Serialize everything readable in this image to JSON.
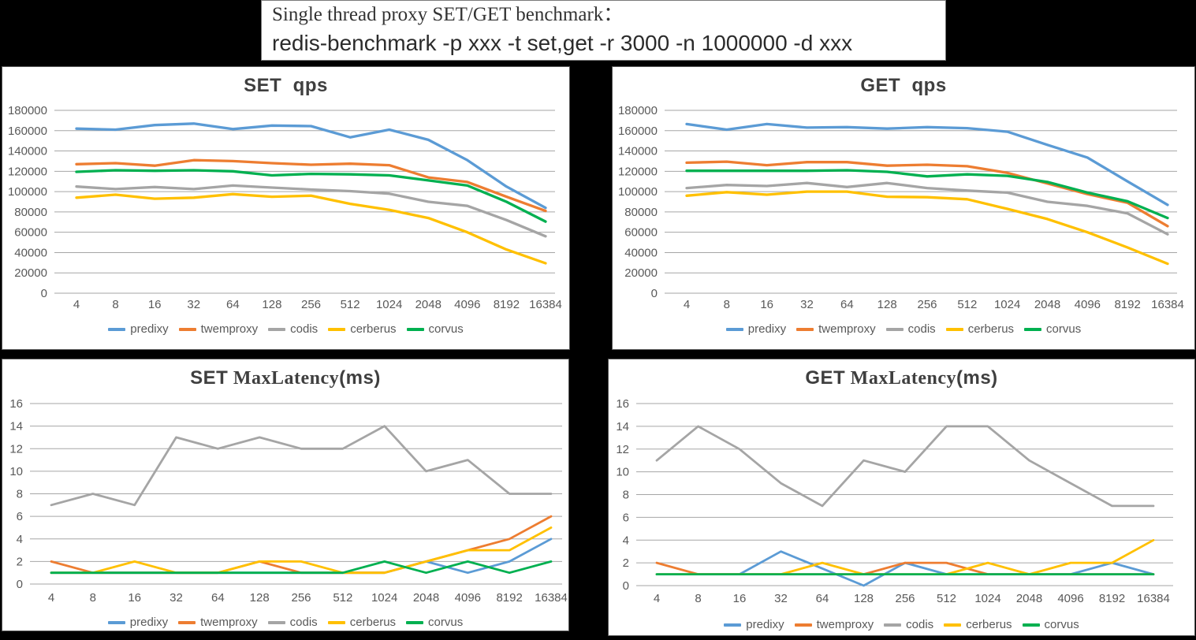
{
  "title_box": {
    "line1": "Single thread proxy SET/GET benchmark：",
    "line2": "redis-benchmark -p xxx -t set,get -r 3000 -n 1000000 -d xxx"
  },
  "colors": {
    "predixy": "#5B9BD5",
    "twemproxy": "#ED7D31",
    "codis": "#A5A5A5",
    "cerberus": "#FFC000",
    "corvus": "#00B050",
    "grid": "#A6A6A6",
    "axis_text": "#595959",
    "title_text": "#3F3F3F"
  },
  "legend": [
    "predixy",
    "twemproxy",
    "codis",
    "cerberus",
    "corvus"
  ],
  "categories": [
    "4",
    "8",
    "16",
    "32",
    "64",
    "128",
    "256",
    "512",
    "1024",
    "2048",
    "4096",
    "8192",
    "16384"
  ],
  "chart_data": [
    {
      "type": "line",
      "title": {
        "bold1": "SET",
        "serif": "",
        "bold2": "  qps"
      },
      "xlabel": "",
      "ylabel": "",
      "ylim": [
        0,
        180000
      ],
      "ytick_step": 20000,
      "grid": true,
      "legend_position": "bottom",
      "categories": [
        "4",
        "8",
        "16",
        "32",
        "64",
        "128",
        "256",
        "512",
        "1024",
        "2048",
        "4096",
        "8192",
        "16384"
      ],
      "series": [
        {
          "name": "predixy",
          "color": "#5B9BD5",
          "values": [
            162000,
            161000,
            165500,
            167000,
            161500,
            165000,
            164500,
            153500,
            161000,
            151000,
            131000,
            105000,
            84000
          ]
        },
        {
          "name": "twemproxy",
          "color": "#ED7D31",
          "values": [
            127000,
            128000,
            125500,
            131000,
            130000,
            128000,
            126500,
            127500,
            126000,
            114000,
            109500,
            95000,
            81000
          ]
        },
        {
          "name": "codis",
          "color": "#A5A5A5",
          "values": [
            105000,
            102500,
            104500,
            102500,
            106000,
            104000,
            102000,
            100500,
            98000,
            90000,
            86000,
            72000,
            56000
          ]
        },
        {
          "name": "cerberus",
          "color": "#FFC000",
          "values": [
            94000,
            97000,
            93000,
            94000,
            97500,
            95000,
            96000,
            88000,
            82000,
            74000,
            60000,
            43000,
            29500
          ]
        },
        {
          "name": "corvus",
          "color": "#00B050",
          "values": [
            119500,
            121000,
            120500,
            121000,
            120000,
            116000,
            117500,
            117000,
            116000,
            111000,
            106000,
            90000,
            70500
          ]
        }
      ]
    },
    {
      "type": "line",
      "title": {
        "bold1": "GET",
        "serif": "",
        "bold2": "  qps"
      },
      "xlabel": "",
      "ylabel": "",
      "ylim": [
        0,
        180000
      ],
      "ytick_step": 20000,
      "grid": true,
      "legend_position": "bottom",
      "categories": [
        "4",
        "8",
        "16",
        "32",
        "64",
        "128",
        "256",
        "512",
        "1024",
        "2048",
        "4096",
        "8192",
        "16384"
      ],
      "series": [
        {
          "name": "predixy",
          "color": "#5B9BD5",
          "values": [
            166500,
            161000,
            166500,
            163000,
            163500,
            162000,
            163500,
            162500,
            159000,
            146000,
            133500,
            110000,
            87000
          ]
        },
        {
          "name": "twemproxy",
          "color": "#ED7D31",
          "values": [
            128500,
            129500,
            126000,
            129000,
            129000,
            125500,
            126500,
            125000,
            118500,
            108000,
            97500,
            89000,
            66000
          ]
        },
        {
          "name": "codis",
          "color": "#A5A5A5",
          "values": [
            103500,
            106500,
            105500,
            108500,
            104500,
            108500,
            103500,
            101000,
            99000,
            90000,
            86000,
            78500,
            58000
          ]
        },
        {
          "name": "cerberus",
          "color": "#FFC000",
          "values": [
            96000,
            99500,
            97000,
            100000,
            100000,
            95000,
            94500,
            92500,
            83000,
            73000,
            60000,
            45000,
            29000
          ]
        },
        {
          "name": "corvus",
          "color": "#00B050",
          "values": [
            120500,
            120500,
            120500,
            120500,
            121000,
            119500,
            115000,
            117000,
            115500,
            109500,
            99000,
            90500,
            74000
          ]
        }
      ]
    },
    {
      "type": "line",
      "title": {
        "bold1": "SET",
        "serif": " MaxLatency",
        "bold2": "(ms)"
      },
      "xlabel": "",
      "ylabel": "",
      "ylim": [
        0,
        16
      ],
      "ytick_step": 2,
      "grid": true,
      "legend_position": "bottom",
      "categories": [
        "4",
        "8",
        "16",
        "32",
        "64",
        "128",
        "256",
        "512",
        "1024",
        "2048",
        "4096",
        "8192",
        "16384"
      ],
      "series": [
        {
          "name": "predixy",
          "color": "#5B9BD5",
          "values": [
            1,
            1,
            1,
            1,
            1,
            1,
            1,
            1,
            1,
            2,
            1,
            2,
            4
          ]
        },
        {
          "name": "twemproxy",
          "color": "#ED7D31",
          "values": [
            2,
            1,
            1,
            1,
            1,
            2,
            1,
            1,
            1,
            2,
            3,
            4,
            6
          ]
        },
        {
          "name": "codis",
          "color": "#A5A5A5",
          "values": [
            7,
            8,
            7,
            13,
            12,
            13,
            12,
            12,
            14,
            10,
            11,
            8,
            8
          ]
        },
        {
          "name": "cerberus",
          "color": "#FFC000",
          "values": [
            1,
            1,
            2,
            1,
            1,
            2,
            2,
            1,
            1,
            2,
            3,
            3,
            5
          ]
        },
        {
          "name": "corvus",
          "color": "#00B050",
          "values": [
            1,
            1,
            1,
            1,
            1,
            1,
            1,
            1,
            2,
            1,
            2,
            1,
            2
          ]
        }
      ]
    },
    {
      "type": "line",
      "title": {
        "bold1": "GET",
        "serif": " MaxLatency",
        "bold2": "(ms)"
      },
      "xlabel": "",
      "ylabel": "",
      "ylim": [
        0,
        16
      ],
      "ytick_step": 2,
      "grid": true,
      "legend_position": "bottom",
      "categories": [
        "4",
        "8",
        "16",
        "32",
        "64",
        "128",
        "256",
        "512",
        "1024",
        "2048",
        "4096",
        "8192",
        "16384"
      ],
      "series": [
        {
          "name": "predixy",
          "color": "#5B9BD5",
          "values": [
            1,
            1,
            1,
            3,
            1.5,
            0,
            2,
            1,
            1,
            1,
            1,
            2,
            1
          ]
        },
        {
          "name": "twemproxy",
          "color": "#ED7D31",
          "values": [
            2,
            1,
            1,
            1,
            1,
            1,
            2,
            2,
            1,
            1,
            1,
            1,
            1
          ]
        },
        {
          "name": "codis",
          "color": "#A5A5A5",
          "values": [
            11,
            14,
            12,
            9,
            7,
            11,
            10,
            14,
            14,
            11,
            9,
            7,
            7
          ]
        },
        {
          "name": "cerberus",
          "color": "#FFC000",
          "values": [
            1,
            1,
            1,
            1,
            2,
            1,
            1,
            1,
            2,
            1,
            2,
            2,
            4
          ]
        },
        {
          "name": "corvus",
          "color": "#00B050",
          "values": [
            1,
            1,
            1,
            1,
            1,
            1,
            1,
            1,
            1,
            1,
            1,
            1,
            1
          ]
        }
      ]
    }
  ]
}
